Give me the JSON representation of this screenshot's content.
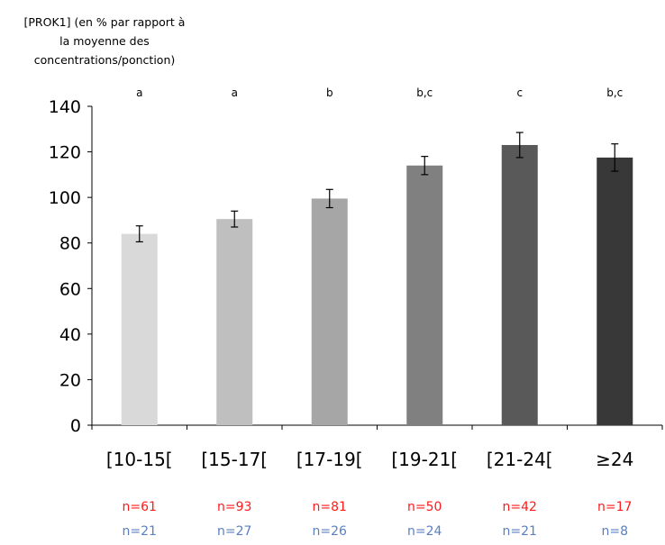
{
  "chart_data": {
    "type": "bar",
    "ylabel_lines": [
      "[PROK1] (en % par rapport à",
      "la moyenne des",
      "concentrations/ponction)"
    ],
    "ylim": [
      0,
      140
    ],
    "yticks": [
      "0",
      "20",
      "40",
      "60",
      "80",
      "100",
      "120",
      "140"
    ],
    "categories": [
      "[10-15[",
      "[15-17[",
      "[17-19[",
      "[19-21[",
      "[21-24[",
      "≥24"
    ],
    "values": [
      84,
      90.5,
      99.5,
      114,
      123,
      117.5
    ],
    "error": [
      3.5,
      3.5,
      4,
      4,
      5.5,
      6
    ],
    "significance": [
      "a",
      "a",
      "b",
      "b,c",
      "c",
      "b,c"
    ],
    "n_red": [
      "n=61",
      "n=93",
      "n=81",
      "n=50",
      "n=42",
      "n=17"
    ],
    "n_blue": [
      "n=21",
      "n=27",
      "n=26",
      "n=24",
      "n=21",
      "n=8"
    ],
    "colors": [
      "#d9d9d9",
      "#bfbfbf",
      "#a6a6a6",
      "#808080",
      "#595959",
      "#383838"
    ],
    "grid": false
  }
}
